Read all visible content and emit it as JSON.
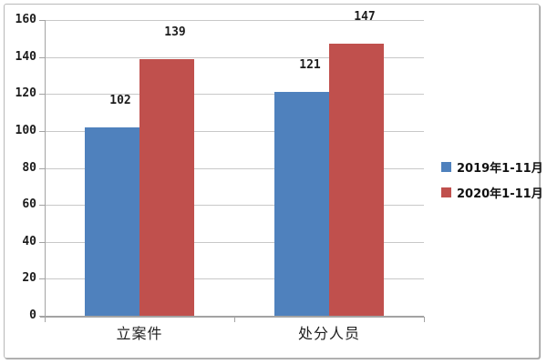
{
  "chart_data": {
    "type": "bar",
    "title": "",
    "categories": [
      "立案件",
      "处分人员"
    ],
    "series": [
      {
        "name": "2019年1-11月",
        "color": "#4F81BD",
        "values": [
          102,
          121
        ]
      },
      {
        "name": "2020年1-11月",
        "color": "#C0504D",
        "values": [
          139,
          147
        ]
      }
    ],
    "ylim": [
      0,
      160
    ],
    "yticks": [
      0,
      20,
      40,
      60,
      80,
      100,
      120,
      140,
      160
    ],
    "grid": true,
    "legend_position": "right",
    "colors": {
      "gridline": "#c8c8c8",
      "axis": "#a3a3a3",
      "text": "#1c1c1c",
      "frame_border": "#b9b9b9",
      "background": "#ffffff"
    }
  }
}
